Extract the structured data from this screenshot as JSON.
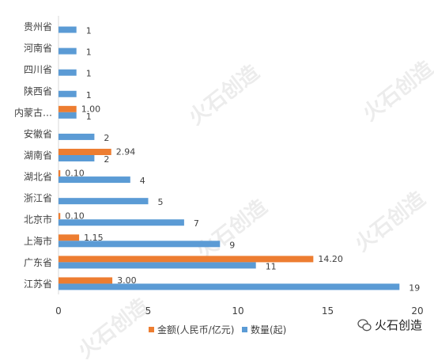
{
  "watermark": "火石创造",
  "brand": {
    "label": "火石创造"
  },
  "colors": {
    "amount": "#ED7D31",
    "count": "#5B9BD5",
    "axis": "#D9D9D9",
    "text": "#404040"
  },
  "chart_data": {
    "type": "bar",
    "orientation": "horizontal",
    "categories": [
      "贵州省",
      "河南省",
      "四川省",
      "陕西省",
      "内蒙古…",
      "安徽省",
      "湖南省",
      "湖北省",
      "浙江省",
      "北京市",
      "上海市",
      "广东省",
      "江苏省"
    ],
    "series": [
      {
        "name": "金额(人民币/亿元)",
        "values": [
          null,
          null,
          null,
          null,
          1.0,
          null,
          2.94,
          0.1,
          null,
          0.1,
          1.15,
          14.2,
          3.0
        ],
        "labels": [
          "",
          "",
          "",
          "",
          "1.00",
          "",
          "2.94",
          "0.10",
          "",
          "0.10",
          "1.15",
          "14.20",
          "3.00"
        ]
      },
      {
        "name": "数量(起)",
        "values": [
          1,
          1,
          1,
          1,
          1,
          2,
          2,
          4,
          5,
          7,
          9,
          11,
          19
        ],
        "labels": [
          "1",
          "1",
          "1",
          "1",
          "1",
          "2",
          "2",
          "4",
          "5",
          "7",
          "9",
          "11",
          "19"
        ]
      }
    ],
    "xlim": [
      0,
      20
    ],
    "xticks": [
      "0",
      "5",
      "10",
      "15",
      "20"
    ],
    "legend_position": "bottom",
    "grid": false
  }
}
